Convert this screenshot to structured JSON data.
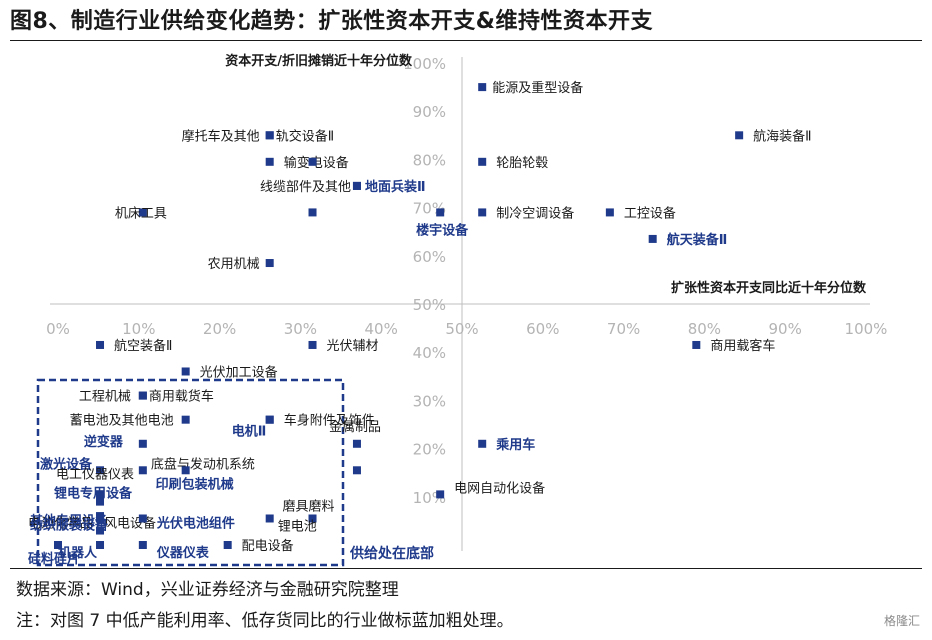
{
  "title": "图8、制造行业供给变化趋势：扩张性资本开支&维持性资本开支",
  "footer": {
    "source": "数据来源：Wind，兴业证券经济与金融研究院整理",
    "note": "注：对图 7 中低产能利用率、低存货同比的行业做标蓝加粗处理。"
  },
  "watermark": "格隆汇",
  "chart_data": {
    "type": "scatter",
    "xlabel": "扩张性资本开支同比近十年分位数",
    "ylabel": "资本开支/折旧摊销近十年分位数",
    "xlim": [
      0,
      1
    ],
    "ylim": [
      0,
      1
    ],
    "x_ticks": [
      "0%",
      "10%",
      "20%",
      "30%",
      "40%",
      "50%",
      "60%",
      "70%",
      "80%",
      "90%",
      "100%"
    ],
    "y_ticks": [
      "10%",
      "20%",
      "30%",
      "40%",
      "50%",
      "60%",
      "70%",
      "80%",
      "90%",
      "100%"
    ],
    "annotation": "供给处在底部",
    "highlight_color": "#1f3a8a",
    "marker_color": "#1f3a8a",
    "points": [
      {
        "name": "能源及重型设备",
        "x": 0.525,
        "y": 0.95,
        "hl": false
      },
      {
        "name": "航海装备Ⅱ",
        "x": 0.843,
        "y": 0.85,
        "hl": false
      },
      {
        "name": "摩托车及其他",
        "x": 0.262,
        "y": 0.85,
        "hl": false
      },
      {
        "name": "轨交设备Ⅱ",
        "x": 0.262,
        "y": 0.85,
        "hl": false
      },
      {
        "name": "输变电设备",
        "x": 0.262,
        "y": 0.795,
        "hl": false
      },
      {
        "name": "输变电设备",
        "x": 0.315,
        "y": 0.795,
        "hl": false
      },
      {
        "name": "轮胎轮毂",
        "x": 0.525,
        "y": 0.795,
        "hl": false
      },
      {
        "name": "线缆部件及其他",
        "x": 0.37,
        "y": 0.745,
        "hl": false
      },
      {
        "name": "地面兵装Ⅱ",
        "x": 0.37,
        "y": 0.745,
        "hl": true
      },
      {
        "name": "机床工具",
        "x": 0.105,
        "y": 0.69,
        "hl": false
      },
      {
        "name": "机床工具",
        "x": 0.315,
        "y": 0.69,
        "hl": false
      },
      {
        "name": "楼宇设备",
        "x": 0.473,
        "y": 0.69,
        "hl": true
      },
      {
        "name": "制冷空调设备",
        "x": 0.525,
        "y": 0.69,
        "hl": false
      },
      {
        "name": "工控设备",
        "x": 0.683,
        "y": 0.69,
        "hl": false
      },
      {
        "name": "航天装备Ⅱ",
        "x": 0.736,
        "y": 0.635,
        "hl": true
      },
      {
        "name": "农用机械",
        "x": 0.262,
        "y": 0.585,
        "hl": false
      },
      {
        "name": "航空装备Ⅱ",
        "x": 0.052,
        "y": 0.415,
        "hl": false
      },
      {
        "name": "光伏辅材",
        "x": 0.315,
        "y": 0.415,
        "hl": false
      },
      {
        "name": "商用载客车",
        "x": 0.79,
        "y": 0.415,
        "hl": false
      },
      {
        "name": "光伏加工设备",
        "x": 0.158,
        "y": 0.36,
        "hl": false
      },
      {
        "name": "工程机械",
        "x": 0.105,
        "y": 0.31,
        "hl": false
      },
      {
        "name": "商用载货车",
        "x": 0.105,
        "y": 0.31,
        "hl": false
      },
      {
        "name": "蓄电池及其他电池",
        "x": 0.158,
        "y": 0.26,
        "hl": false
      },
      {
        "name": "电机Ⅱ",
        "x": 0.262,
        "y": 0.26,
        "hl": true
      },
      {
        "name": "车身附件及饰件",
        "x": 0.262,
        "y": 0.26,
        "hl": false
      },
      {
        "name": "逆变器",
        "x": 0.105,
        "y": 0.21,
        "hl": true
      },
      {
        "name": "金属制品",
        "x": 0.37,
        "y": 0.21,
        "hl": false
      },
      {
        "name": "乘用车",
        "x": 0.525,
        "y": 0.21,
        "hl": true
      },
      {
        "name": "激光设备",
        "x": 0.052,
        "y": 0.155,
        "hl": true
      },
      {
        "name": "底盘与发动机系统",
        "x": 0.105,
        "y": 0.155,
        "hl": false
      },
      {
        "name": "印刷包装机械",
        "x": 0.158,
        "y": 0.155,
        "hl": true
      },
      {
        "name": "金属制品",
        "x": 0.37,
        "y": 0.155,
        "hl": false
      },
      {
        "name": "电工仪器仪表",
        "x": 0.052,
        "y": 0.105,
        "hl": false
      },
      {
        "name": "电网自动化设备",
        "x": 0.473,
        "y": 0.105,
        "hl": false
      },
      {
        "name": "锂电专用设备",
        "x": 0.052,
        "y": 0.09,
        "hl": true
      },
      {
        "name": "磨具磨料",
        "x": 0.315,
        "y": 0.055,
        "hl": false
      },
      {
        "name": "锂电池",
        "x": 0.262,
        "y": 0.055,
        "hl": false
      },
      {
        "name": "其他专用设备",
        "x": 0.052,
        "y": 0.06,
        "hl": true
      },
      {
        "name": "电池化学品",
        "x": 0.052,
        "y": 0.055,
        "hl": false
      },
      {
        "name": "风电设备",
        "x": 0.052,
        "y": 0.055,
        "hl": false
      },
      {
        "name": "光伏电池组件",
        "x": 0.105,
        "y": 0.055,
        "hl": true
      },
      {
        "name": "纺织服装设备",
        "x": 0.052,
        "y": 0.03,
        "hl": true
      },
      {
        "name": "硅料硅片",
        "x": 0.0,
        "y": 0.0,
        "hl": true
      },
      {
        "name": "机器人",
        "x": 0.052,
        "y": 0.0,
        "hl": true
      },
      {
        "name": "仪器仪表",
        "x": 0.105,
        "y": 0.0,
        "hl": true
      },
      {
        "name": "配电设备",
        "x": 0.21,
        "y": 0.0,
        "hl": false
      }
    ]
  }
}
